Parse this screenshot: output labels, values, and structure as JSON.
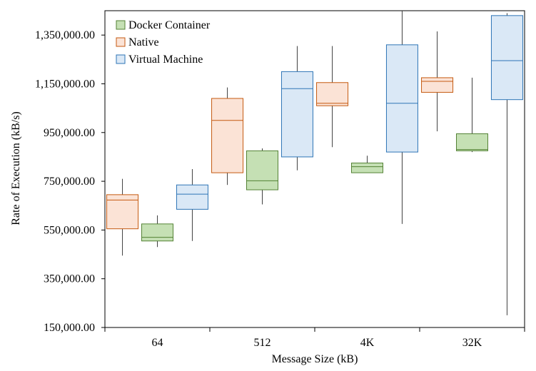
{
  "chart_data": {
    "type": "box",
    "title": "",
    "xlabel": "Message Size (kB)",
    "ylabel": "Rate of Execution (kB/s)",
    "ylim": [
      150000,
      1450000
    ],
    "yticks": [
      150000,
      350000,
      550000,
      750000,
      950000,
      1150000,
      1350000
    ],
    "ytick_labels": [
      "150,000.00",
      "350,000.00",
      "550,000.00",
      "750,000.00",
      "950,000.00",
      "1,150,000.00",
      "1,350,000.00"
    ],
    "categories": [
      "64",
      "512",
      "4K",
      "32K"
    ],
    "grid": false,
    "legend_position": "top-left",
    "series": [
      {
        "name": "Native",
        "fill": "#fbe3d6",
        "stroke": "#c55a11",
        "boxes": [
          {
            "min": 445000,
            "q1": 555000,
            "median": 673000,
            "q3": 695000,
            "max": 760000
          },
          {
            "min": 735000,
            "q1": 785000,
            "median": 1000000,
            "q3": 1090000,
            "max": 1135000
          },
          {
            "min": 890000,
            "q1": 1060000,
            "median": 1070000,
            "q3": 1155000,
            "max": 1305000
          },
          {
            "min": 955000,
            "q1": 1115000,
            "median": 1160000,
            "q3": 1175000,
            "max": 1365000
          }
        ]
      },
      {
        "name": "Docker Container",
        "fill": "#c5e0b4",
        "stroke": "#548235",
        "boxes": [
          {
            "min": 480000,
            "q1": 505000,
            "median": 520000,
            "q3": 575000,
            "max": 610000
          },
          {
            "min": 655000,
            "q1": 715000,
            "median": 752000,
            "q3": 875000,
            "max": 885000
          },
          {
            "min": 785000,
            "q1": 785000,
            "median": 810000,
            "q3": 825000,
            "max": 855000
          },
          {
            "min": 870000,
            "q1": 875000,
            "median": 880000,
            "q3": 945000,
            "max": 1175000
          }
        ]
      },
      {
        "name": "Virtual Machine",
        "fill": "#dae8f6",
        "stroke": "#2e75b6",
        "boxes": [
          {
            "min": 505000,
            "q1": 635000,
            "median": 697000,
            "q3": 735000,
            "max": 800000
          },
          {
            "min": 795000,
            "q1": 850000,
            "median": 1130000,
            "q3": 1200000,
            "max": 1305000
          },
          {
            "min": 575000,
            "q1": 870000,
            "median": 1070000,
            "q3": 1310000,
            "max": 1450000
          },
          {
            "min": 200000,
            "q1": 1085000,
            "median": 1245000,
            "q3": 1430000,
            "max": 1440000
          }
        ]
      }
    ]
  }
}
